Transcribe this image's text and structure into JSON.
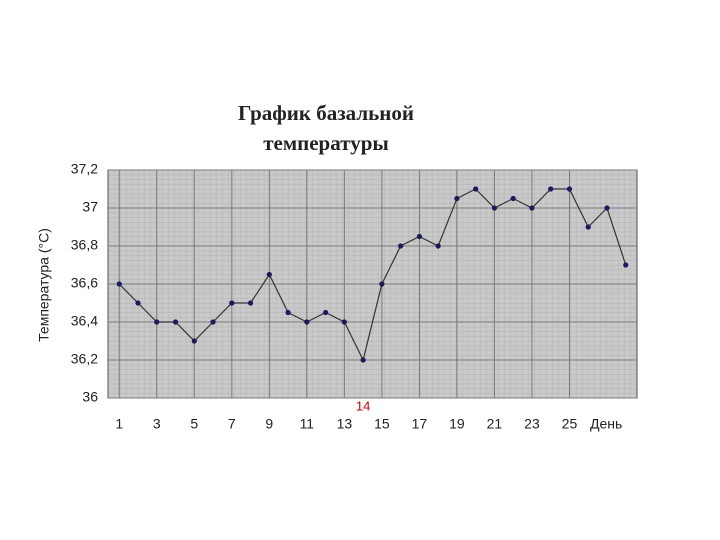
{
  "chart_data": {
    "type": "line",
    "title": [
      "График базальной",
      "температуры"
    ],
    "y_label": "Температура (°С)",
    "x_label": "День",
    "x": [
      1,
      2,
      3,
      4,
      5,
      6,
      7,
      8,
      9,
      10,
      11,
      12,
      13,
      14,
      15,
      16,
      17,
      18,
      19,
      20,
      21,
      22,
      23,
      24,
      25,
      26,
      27,
      28
    ],
    "series": [
      {
        "name": "Температура",
        "color": "#1a1a5e",
        "values": [
          36.6,
          36.5,
          36.4,
          36.4,
          36.3,
          36.4,
          36.5,
          36.5,
          36.65,
          36.45,
          36.4,
          36.45,
          36.4,
          36.2,
          36.6,
          36.8,
          36.85,
          36.8,
          37.05,
          37.1,
          37.0,
          37.05,
          37.0,
          37.1,
          37.1,
          36.9,
          37.0,
          36.7
        ]
      }
    ],
    "xlim": [
      0.4,
      28.6
    ],
    "xticks": [
      1,
      3,
      5,
      7,
      9,
      11,
      13,
      15,
      17,
      19,
      21,
      23,
      25
    ],
    "ylim": [
      36,
      37.2
    ],
    "yticks": [
      36,
      {
        "value": 36.2,
        "label": "36,2"
      },
      {
        "value": 36.4,
        "label": "36,4"
      },
      {
        "value": 36.6,
        "label": "36,6"
      },
      {
        "value": 36.8,
        "label": "36,8"
      },
      37,
      {
        "value": 37.2,
        "label": "37,2"
      }
    ],
    "grid": true,
    "annotations": [
      {
        "x": 14,
        "text": "14",
        "color": "#cc0000"
      }
    ]
  }
}
